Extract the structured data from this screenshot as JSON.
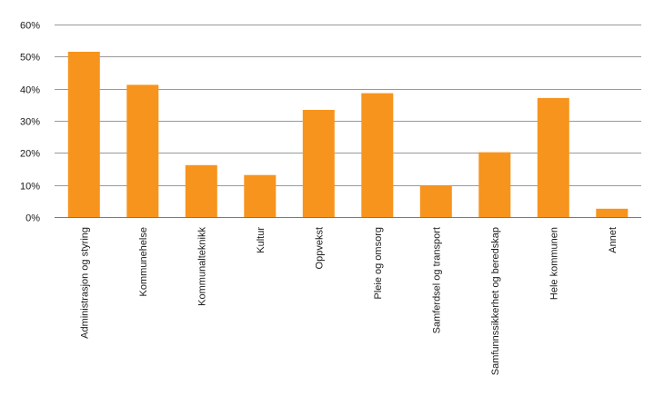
{
  "chart_data": {
    "type": "bar",
    "title": "",
    "xlabel": "",
    "ylabel": "",
    "categories": [
      "Administrasjon og styring",
      "Kommunehelse",
      "Kommunalteknikk",
      "Kultur",
      "Oppvekst",
      "Pleie og omsorg",
      "Samferdsel og transport",
      "Samfunnssikkerhet og beredskap",
      "Hele kommunen",
      "Annet"
    ],
    "values": [
      51.5,
      41.2,
      16.2,
      13.1,
      33.4,
      38.6,
      9.8,
      20.2,
      37.1,
      2.6
    ],
    "ylim": [
      0,
      60
    ],
    "yticks": [
      0,
      10,
      20,
      30,
      40,
      50,
      60
    ],
    "ytick_labels": [
      "0%",
      "10%",
      "20%",
      "30%",
      "40%",
      "50%",
      "60%"
    ],
    "grid": true,
    "legend": "none",
    "bar_color": "#f7941d"
  }
}
